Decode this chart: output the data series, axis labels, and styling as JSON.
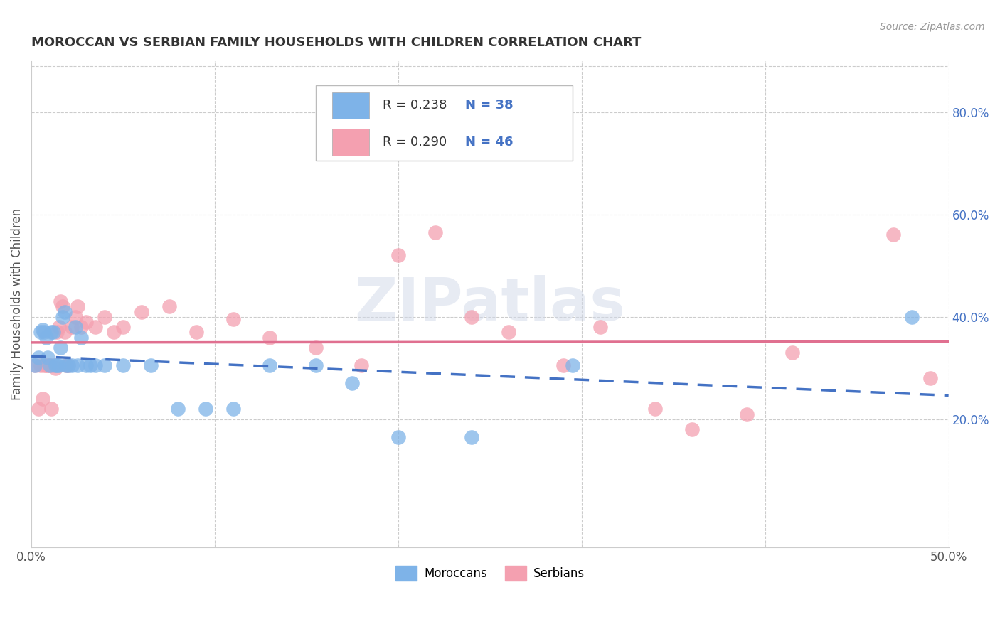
{
  "title": "MOROCCAN VS SERBIAN FAMILY HOUSEHOLDS WITH CHILDREN CORRELATION CHART",
  "source": "Source: ZipAtlas.com",
  "ylabel": "Family Households with Children",
  "xlim": [
    0.0,
    0.5
  ],
  "ylim": [
    -0.05,
    0.9
  ],
  "x_ticks": [
    0.0,
    0.1,
    0.2,
    0.3,
    0.4,
    0.5
  ],
  "x_tick_labels": [
    "0.0%",
    "",
    "",
    "",
    "",
    "50.0%"
  ],
  "y_ticks_right": [
    0.2,
    0.4,
    0.6,
    0.8
  ],
  "y_tick_labels_right": [
    "20.0%",
    "40.0%",
    "60.0%",
    "80.0%"
  ],
  "moroccan_color": "#7EB3E8",
  "serbian_color": "#F4A0B0",
  "moroccan_line_color": "#4472c4",
  "serbian_line_color": "#E07090",
  "moroccan_R": "0.238",
  "moroccan_N": "38",
  "serbian_R": "0.290",
  "serbian_N": "46",
  "legend_label_1": "Moroccans",
  "legend_label_2": "Serbians",
  "watermark": "ZIPatlas",
  "moroccan_x": [
    0.002,
    0.004,
    0.005,
    0.006,
    0.007,
    0.008,
    0.009,
    0.01,
    0.011,
    0.012,
    0.013,
    0.014,
    0.015,
    0.016,
    0.017,
    0.018,
    0.019,
    0.02,
    0.022,
    0.024,
    0.025,
    0.027,
    0.03,
    0.032,
    0.035,
    0.04,
    0.05,
    0.065,
    0.08,
    0.095,
    0.11,
    0.13,
    0.155,
    0.175,
    0.2,
    0.24,
    0.295,
    0.48
  ],
  "moroccan_y": [
    0.305,
    0.32,
    0.37,
    0.375,
    0.37,
    0.36,
    0.32,
    0.305,
    0.37,
    0.37,
    0.305,
    0.305,
    0.305,
    0.34,
    0.4,
    0.41,
    0.305,
    0.305,
    0.305,
    0.38,
    0.305,
    0.36,
    0.305,
    0.305,
    0.305,
    0.305,
    0.305,
    0.305,
    0.22,
    0.22,
    0.22,
    0.305,
    0.305,
    0.27,
    0.165,
    0.165,
    0.305,
    0.4
  ],
  "serbian_x": [
    0.002,
    0.004,
    0.005,
    0.006,
    0.007,
    0.008,
    0.009,
    0.01,
    0.011,
    0.012,
    0.013,
    0.014,
    0.015,
    0.016,
    0.017,
    0.018,
    0.019,
    0.02,
    0.022,
    0.024,
    0.025,
    0.027,
    0.03,
    0.035,
    0.04,
    0.045,
    0.05,
    0.06,
    0.075,
    0.09,
    0.11,
    0.13,
    0.155,
    0.18,
    0.2,
    0.22,
    0.24,
    0.26,
    0.29,
    0.31,
    0.34,
    0.36,
    0.39,
    0.415,
    0.47,
    0.49
  ],
  "serbian_y": [
    0.305,
    0.22,
    0.305,
    0.24,
    0.305,
    0.305,
    0.305,
    0.305,
    0.22,
    0.305,
    0.3,
    0.37,
    0.38,
    0.43,
    0.42,
    0.37,
    0.305,
    0.305,
    0.38,
    0.4,
    0.42,
    0.38,
    0.39,
    0.38,
    0.4,
    0.37,
    0.38,
    0.41,
    0.42,
    0.37,
    0.395,
    0.36,
    0.34,
    0.305,
    0.52,
    0.565,
    0.4,
    0.37,
    0.305,
    0.38,
    0.22,
    0.18,
    0.21,
    0.33,
    0.56,
    0.28
  ],
  "background_color": "#ffffff",
  "grid_color": "#cccccc",
  "title_color": "#333333",
  "axis_label_color": "#555555",
  "right_tick_color": "#4472c4"
}
